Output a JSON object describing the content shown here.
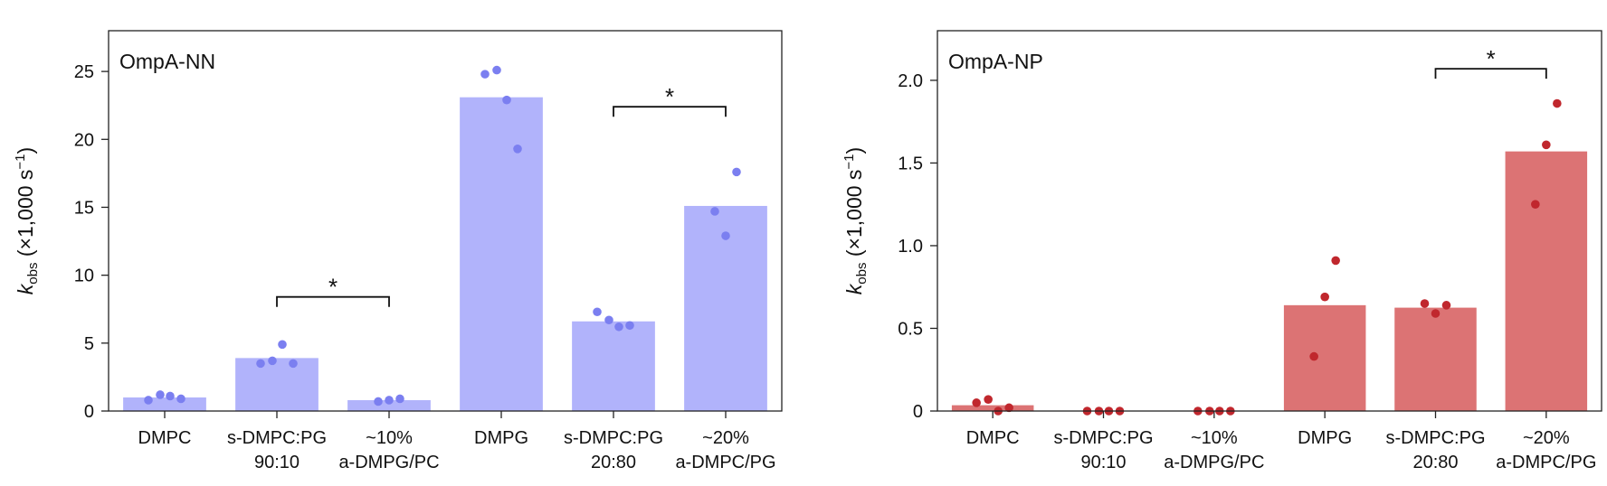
{
  "chart_data": [
    {
      "type": "bar",
      "title": "OmpA-NN",
      "ylabel": "k_obs (×1,000 s⁻¹)",
      "ylabel_parts": {
        "k": "k",
        "sub": "obs",
        "main": " (×1,000 s",
        "sup": "−1",
        "close": ")"
      },
      "ylim": [
        0,
        28
      ],
      "yticks": [
        0,
        5,
        10,
        15,
        20,
        25
      ],
      "yticklabels": [
        "0",
        "5",
        "10",
        "15",
        "20",
        "25"
      ],
      "categories": [
        {
          "line1": "DMPC",
          "line2": ""
        },
        {
          "line1": "s-DMPC:PG",
          "line2": "90:10"
        },
        {
          "line1": "~10%",
          "line2": "a-DMPG/PC"
        },
        {
          "line1": "DMPG",
          "line2": ""
        },
        {
          "line1": "s-DMPC:PG",
          "line2": "20:80"
        },
        {
          "line1": "~20%",
          "line2": "a-DMPC/PG"
        }
      ],
      "values": [
        1.0,
        3.9,
        0.8,
        23.1,
        6.6,
        15.1
      ],
      "replicates": [
        [
          0.8,
          1.2,
          1.1,
          0.9
        ],
        [
          3.5,
          3.7,
          4.9,
          3.5
        ],
        [
          0.7,
          0.8,
          0.9
        ],
        [
          24.8,
          25.1,
          22.9,
          19.3
        ],
        [
          7.3,
          6.7,
          6.2,
          6.3
        ],
        [
          14.7,
          12.9,
          17.6
        ]
      ],
      "significance": [
        {
          "from": 1,
          "to": 2,
          "label": "*",
          "y": 8.4
        },
        {
          "from": 4,
          "to": 5,
          "label": "*",
          "y": 22.4
        }
      ],
      "colors": {
        "bar": "#b1b3fb",
        "point": "#7b7ff0"
      }
    },
    {
      "type": "bar",
      "title": "OmpA-NP",
      "ylabel": "k_obs (×1,000 s⁻¹)",
      "ylabel_parts": {
        "k": "k",
        "sub": "obs",
        "main": " (×1,000 s",
        "sup": "−1",
        "close": ")"
      },
      "ylim": [
        0,
        2.3
      ],
      "yticks": [
        0,
        0.5,
        1.0,
        1.5,
        2.0
      ],
      "yticklabels": [
        "0",
        "0.5",
        "1.0",
        "1.5",
        "2.0"
      ],
      "categories": [
        {
          "line1": "DMPC",
          "line2": ""
        },
        {
          "line1": "s-DMPC:PG",
          "line2": "90:10"
        },
        {
          "line1": "~10%",
          "line2": "a-DMPG/PC"
        },
        {
          "line1": "DMPG",
          "line2": ""
        },
        {
          "line1": "s-DMPC:PG",
          "line2": "20:80"
        },
        {
          "line1": "~20%",
          "line2": "a-DMPC/PG"
        }
      ],
      "values": [
        0.035,
        0.0,
        0.0,
        0.64,
        0.625,
        1.57
      ],
      "replicates": [
        [
          0.05,
          0.07,
          0.0,
          0.02
        ],
        [
          0.0,
          0.0,
          0.0,
          0.0
        ],
        [
          0.0,
          0.0,
          0.0,
          0.0
        ],
        [
          0.33,
          0.69,
          0.91
        ],
        [
          0.65,
          0.59,
          0.64
        ],
        [
          1.25,
          1.61,
          1.86
        ]
      ],
      "significance": [
        {
          "from": 4,
          "to": 5,
          "label": "*",
          "y": 2.07
        }
      ],
      "colors": {
        "bar": "#dc7374",
        "point": "#c0272d"
      }
    }
  ]
}
